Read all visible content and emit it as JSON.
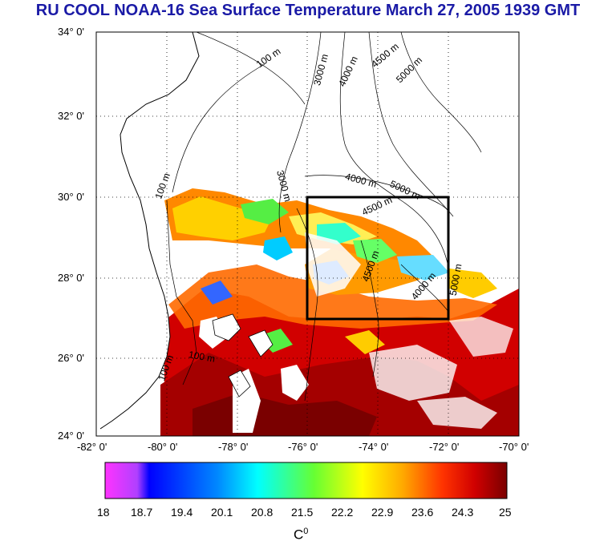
{
  "title": "RU COOL  NOAA-16 Sea Surface Temperature March 27, 2005 1939 GMT",
  "map": {
    "lat_labels": [
      "34° 0'",
      "32° 0'",
      "30° 0'",
      "28° 0'",
      "26° 0'",
      "24° 0'"
    ],
    "lon_labels": [
      "-82° 0'",
      "-80° 0'",
      "-78° 0'",
      "-76° 0'",
      "-74° 0'",
      "-72° 0'",
      "-70° 0'"
    ],
    "lat_range": [
      24,
      34
    ],
    "lon_range": [
      -82,
      -70
    ],
    "grid": "dotted",
    "contour_labels": [
      "100 m",
      "3000 m",
      "4000 m",
      "4500 m",
      "5000 m"
    ],
    "study_box": {
      "lon": [
        -76,
        -72
      ],
      "lat": [
        27,
        30
      ]
    }
  },
  "colorbar": {
    "ticks": [
      "18",
      "18.7",
      "19.4",
      "20.1",
      "20.8",
      "21.5",
      "22.2",
      "22.9",
      "23.6",
      "24.3",
      "25"
    ],
    "unit": "C",
    "unit_sup": "0",
    "colors": {
      "min": "#ff33ff",
      "low": "#0000ff",
      "mid": "#00ffff",
      "green": "#66ff33",
      "yellow": "#ffff00",
      "orange": "#ff8800",
      "red": "#ff0000",
      "max": "#8b0000"
    }
  }
}
